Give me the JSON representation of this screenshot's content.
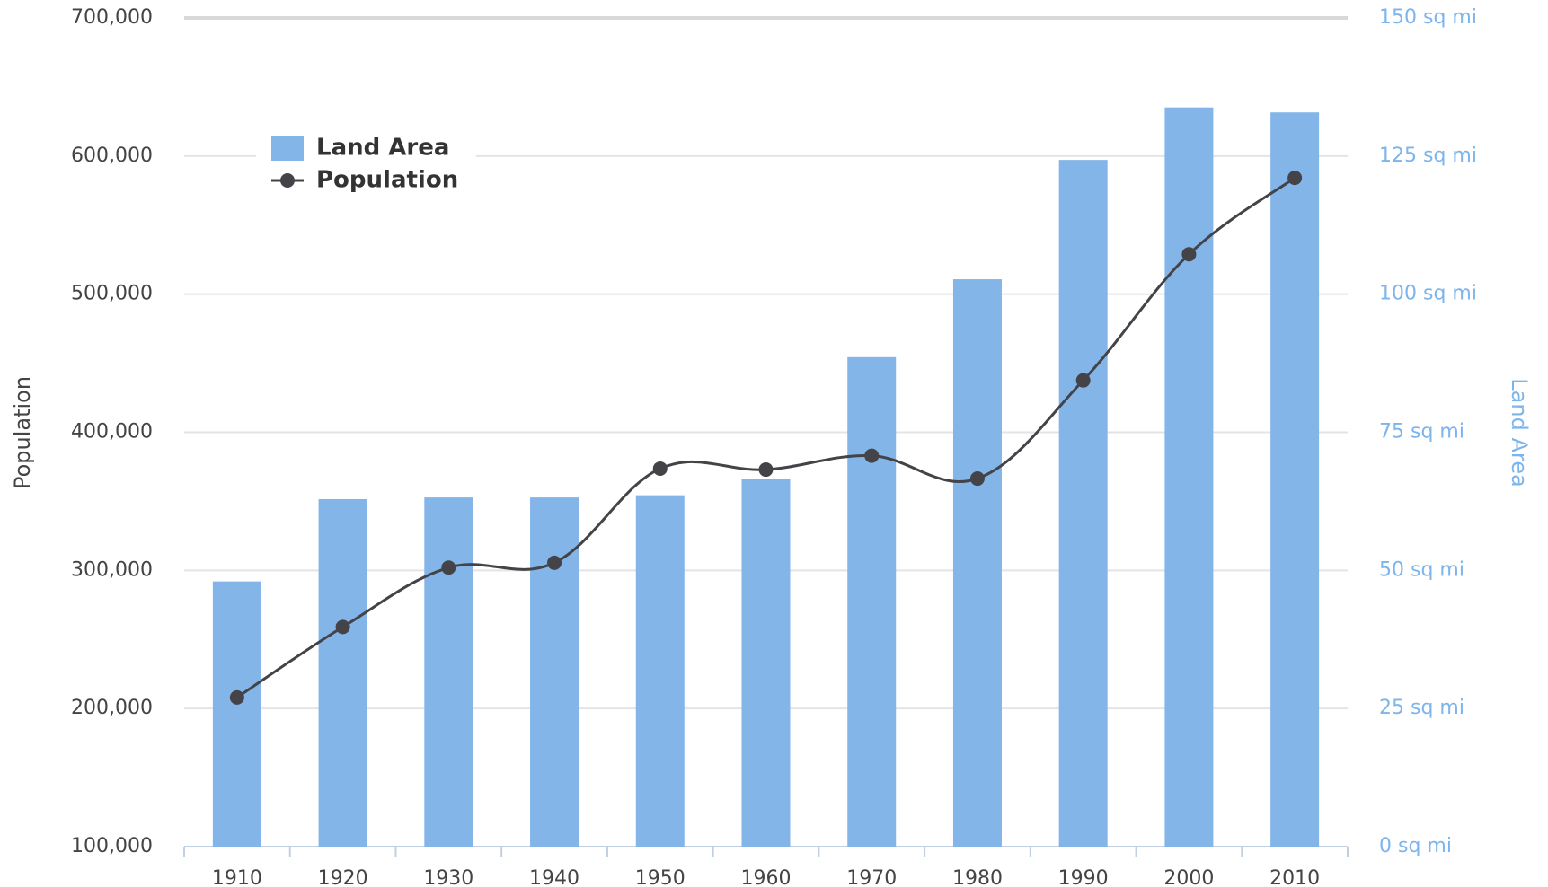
{
  "chart_data": {
    "type": "bar_line",
    "categories": [
      "1910",
      "1920",
      "1930",
      "1940",
      "1950",
      "1960",
      "1970",
      "1980",
      "1990",
      "2000",
      "2010"
    ],
    "series": [
      {
        "name": "Land Area",
        "type": "bar",
        "axis": "y2",
        "color": "#83b5e8",
        "values": [
          48.0,
          62.9,
          63.2,
          63.2,
          63.6,
          66.6,
          88.6,
          102.7,
          124.3,
          133.8,
          132.9
        ]
      },
      {
        "name": "Population",
        "type": "line",
        "color": "#434348",
        "values": [
          208000,
          259000,
          302000,
          305500,
          373700,
          373000,
          383000,
          366500,
          437600,
          528900,
          584200
        ]
      }
    ],
    "ylabel": "Population",
    "y2label": "Land Area",
    "ylim": [
      100000,
      700000
    ],
    "yticks": [
      {
        "value": 100000,
        "label": "100,000"
      },
      {
        "value": 200000,
        "label": "200,000"
      },
      {
        "value": 300000,
        "label": "300,000"
      },
      {
        "value": 400000,
        "label": "400,000"
      },
      {
        "value": 500000,
        "label": "500,000"
      },
      {
        "value": 600000,
        "label": "600,000"
      },
      {
        "value": 700000,
        "label": "700,000"
      }
    ],
    "y2lim": [
      0,
      150
    ],
    "y2ticks": [
      {
        "value": 0,
        "label": "0 sq mi"
      },
      {
        "value": 25,
        "label": "25 sq mi"
      },
      {
        "value": 50,
        "label": "50 sq mi"
      },
      {
        "value": 75,
        "label": "75 sq mi"
      },
      {
        "value": 100,
        "label": "100 sq mi"
      },
      {
        "value": 125,
        "label": "125 sq mi"
      },
      {
        "value": 150,
        "label": "150 sq mi"
      }
    ],
    "grid": true,
    "legend": "upper left"
  }
}
